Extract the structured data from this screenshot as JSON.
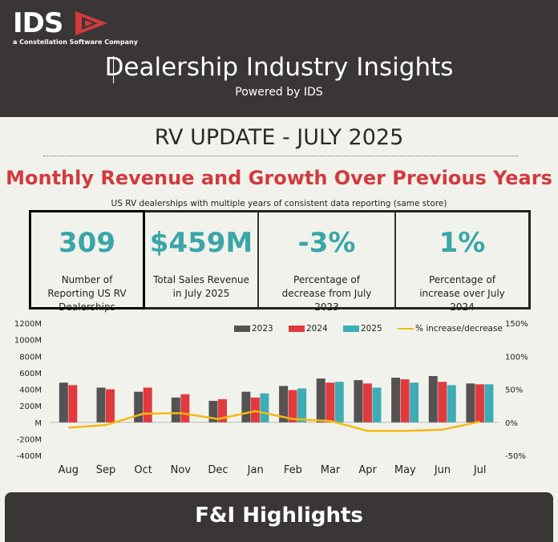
{
  "header": {
    "logo_text": "IDS",
    "logo_sub": "a Constellation Software Company",
    "title": "Dealership Industry Insights",
    "subtitle": "Powered by IDS"
  },
  "report": {
    "title": "RV UPDATE - JULY 2025",
    "section_title": "Monthly Revenue and Growth Over Previous Years",
    "note": "US RV dealerships with multiple years of consistent data reporting (same store)"
  },
  "kpis": [
    {
      "value": "309",
      "label": "Number of Reporting US RV Dealerships"
    },
    {
      "value": "$459M",
      "label": "Total Sales Revenue in July 2025"
    },
    {
      "value": "-3%",
      "label": "Percentage of decrease from July 2023"
    },
    {
      "value": "1%",
      "label": "Percentage of increase over July 2024"
    }
  ],
  "footer": {
    "title": "F&I Highlights"
  },
  "colors": {
    "s2023": "#545252",
    "s2024": "#e03a3f",
    "s2025": "#3eadb3",
    "pct": "#f5b90f",
    "kpi_value": "#3aa6a8",
    "accent_red": "#d23a3e"
  },
  "chart_data": {
    "type": "bar",
    "categories": [
      "Aug",
      "Sep",
      "Oct",
      "Nov",
      "Dec",
      "Jan",
      "Feb",
      "Mar",
      "Apr",
      "May",
      "Jun",
      "Jul"
    ],
    "series": [
      {
        "name": "2023",
        "values": [
          480,
          420,
          370,
          300,
          260,
          370,
          440,
          530,
          510,
          540,
          560,
          470
        ]
      },
      {
        "name": "2024",
        "values": [
          450,
          400,
          420,
          340,
          280,
          300,
          390,
          480,
          470,
          520,
          490,
          460
        ]
      },
      {
        "name": "2025",
        "values": [
          null,
          null,
          null,
          null,
          null,
          350,
          410,
          490,
          420,
          480,
          450,
          460
        ]
      }
    ],
    "line_series": {
      "name": "% increase/decrease",
      "axis": "right",
      "values": [
        -8,
        -4,
        13,
        14,
        5,
        17,
        5,
        2,
        -13,
        -13,
        -11,
        1
      ]
    },
    "ylabel_left_ticks": [
      "1200M",
      "1000M",
      "800M",
      "600M",
      "400M",
      "200M",
      "M",
      "-200M",
      "-400M"
    ],
    "ylabel_right_ticks": [
      "150%",
      "100%",
      "50%",
      "0%",
      "-50%"
    ],
    "ylim": [
      -400,
      1200
    ],
    "y2lim": [
      -50,
      150
    ],
    "legend_position": "top-right",
    "grid": false
  }
}
